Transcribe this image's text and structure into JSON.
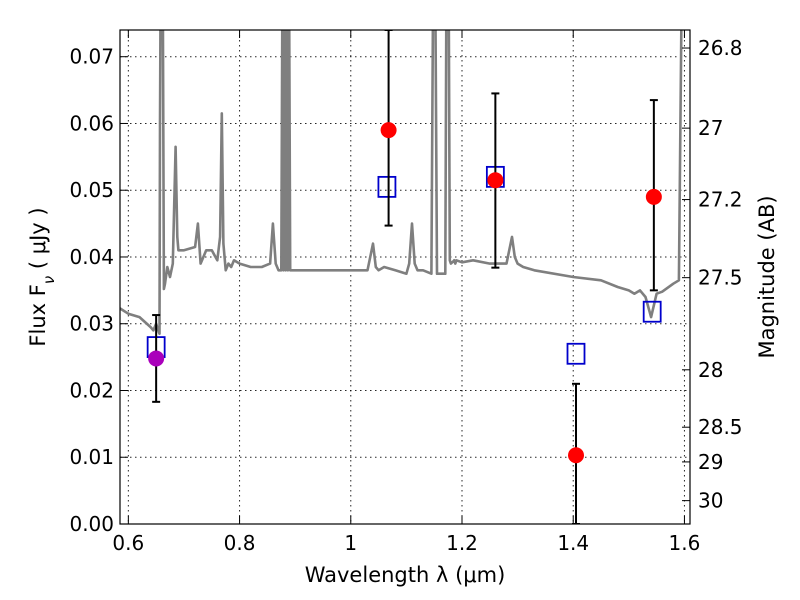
{
  "chart_data": {
    "type": "scatter",
    "title": "",
    "xlabel": "Wavelength  λ (μm)",
    "ylabel": "Flux  F",
    "ylabel_subscript": "ν",
    "ylabel_unit": " (  μJy )",
    "ylabel_right": "Magnitude (AB)",
    "xlim": [
      0.585,
      1.61
    ],
    "ylim": [
      0.0,
      0.074
    ],
    "x_ticks": [
      0.6,
      0.8,
      1.0,
      1.2,
      1.4,
      1.6
    ],
    "x_tick_labels": [
      "0.6",
      "0.8",
      "1",
      "1.2",
      "1.4",
      "1.6"
    ],
    "y_ticks": [
      0.0,
      0.01,
      0.02,
      0.03,
      0.04,
      0.05,
      0.06,
      0.07
    ],
    "y_tick_labels": [
      "0.00",
      "0.01",
      "0.02",
      "0.03",
      "0.04",
      "0.05",
      "0.06",
      "0.07"
    ],
    "right_ticks": [
      {
        "flux": 0.0713,
        "label": "26.8"
      },
      {
        "flux": 0.0593,
        "label": "27"
      },
      {
        "flux": 0.0486,
        "label": "27.2"
      },
      {
        "flux": 0.0369,
        "label": "27.5"
      },
      {
        "flux": 0.0231,
        "label": "28"
      },
      {
        "flux": 0.0145,
        "label": "28.5"
      },
      {
        "flux": 0.0093,
        "label": "29"
      },
      {
        "flux": 0.0035,
        "label": "30"
      }
    ],
    "grid": true,
    "series": [
      {
        "kind": "spectrum",
        "color": "#7f7f7f",
        "x": [
          0.585,
          0.6,
          0.62,
          0.64,
          0.645,
          0.65,
          0.655,
          0.656,
          0.657,
          0.658,
          0.66,
          0.662,
          0.664,
          0.666,
          0.67,
          0.675,
          0.68,
          0.685,
          0.688,
          0.69,
          0.7,
          0.72,
          0.725,
          0.73,
          0.74,
          0.75,
          0.76,
          0.765,
          0.768,
          0.771,
          0.775,
          0.78,
          0.785,
          0.79,
          0.8,
          0.82,
          0.84,
          0.855,
          0.86,
          0.865,
          0.87,
          0.875,
          0.877,
          0.879,
          0.881,
          0.883,
          0.885,
          0.887,
          0.889,
          0.891,
          0.893,
          0.9,
          0.95,
          1.0,
          1.03,
          1.04,
          1.045,
          1.05,
          1.06,
          1.08,
          1.1,
          1.105,
          1.11,
          1.115,
          1.12,
          1.13,
          1.145,
          1.148,
          1.15,
          1.152,
          1.155,
          1.17,
          1.172,
          1.174,
          1.176,
          1.178,
          1.18,
          1.184,
          1.186,
          1.188,
          1.19,
          1.2,
          1.22,
          1.25,
          1.28,
          1.29,
          1.295,
          1.3,
          1.31,
          1.33,
          1.4,
          1.45,
          1.48,
          1.5,
          1.51,
          1.52,
          1.53,
          1.54,
          1.55,
          1.56,
          1.58,
          1.59,
          1.595,
          1.598,
          1.6,
          1.602
        ],
        "y": [
          0.0323,
          0.0315,
          0.031,
          0.0295,
          0.029,
          0.03,
          0.0287,
          0.0285,
          0.06,
          0.08,
          0.08,
          0.08,
          0.0352,
          0.036,
          0.0385,
          0.037,
          0.039,
          0.0565,
          0.043,
          0.041,
          0.041,
          0.0415,
          0.045,
          0.039,
          0.041,
          0.041,
          0.0395,
          0.043,
          0.0615,
          0.042,
          0.038,
          0.039,
          0.0385,
          0.0395,
          0.039,
          0.0385,
          0.0385,
          0.039,
          0.045,
          0.039,
          0.038,
          0.038,
          0.08,
          0.038,
          0.08,
          0.038,
          0.08,
          0.038,
          0.08,
          0.038,
          0.038,
          0.038,
          0.038,
          0.038,
          0.038,
          0.042,
          0.0385,
          0.038,
          0.0385,
          0.038,
          0.0375,
          0.039,
          0.045,
          0.039,
          0.038,
          0.038,
          0.0375,
          0.08,
          0.08,
          0.08,
          0.0375,
          0.0375,
          0.08,
          0.08,
          0.08,
          0.0395,
          0.039,
          0.0393,
          0.0395,
          0.039,
          0.0395,
          0.0392,
          0.0395,
          0.039,
          0.039,
          0.043,
          0.04,
          0.039,
          0.0385,
          0.038,
          0.037,
          0.0365,
          0.0355,
          0.035,
          0.0345,
          0.035,
          0.034,
          0.031,
          0.0345,
          0.0348,
          0.036,
          0.0365,
          0.08,
          0.08,
          0.08,
          0.08
        ]
      },
      {
        "kind": "model",
        "color": "#0000cc",
        "x": [
          0.65,
          1.065,
          1.26,
          1.405,
          1.542
        ],
        "y": [
          0.0265,
          0.0505,
          0.052,
          0.0255,
          0.0318
        ]
      },
      {
        "kind": "observed",
        "x": [
          0.65,
          1.068,
          1.26,
          1.405,
          1.545
        ],
        "y": [
          0.0248,
          0.059,
          0.0515,
          0.0103,
          0.049
        ],
        "err_low": [
          0.0183,
          0.0447,
          0.0384,
          0.0,
          0.035
        ],
        "err_high": [
          0.0313,
          0.074,
          0.0645,
          0.021,
          0.0635
        ],
        "colors": [
          "#aa00bb",
          "#ff0000",
          "#ff0000",
          "#ff0000",
          "#ff0000"
        ]
      }
    ]
  }
}
